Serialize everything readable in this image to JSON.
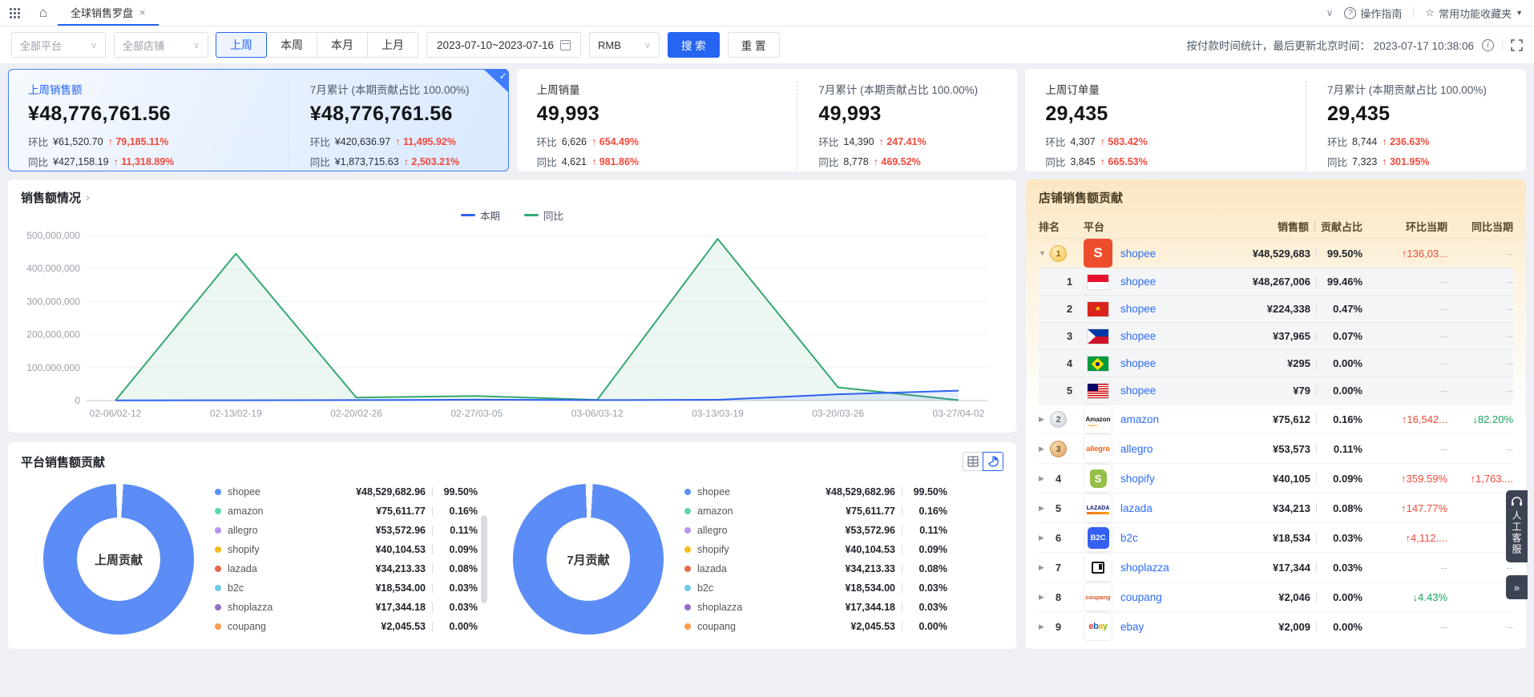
{
  "topbar": {
    "tab_label": "全球销售罗盘",
    "guide_label": "操作指南",
    "favorites_label": "常用功能收藏夹"
  },
  "icons": {
    "close": "×",
    "home": "⌂",
    "star": "☆",
    "question": "?",
    "info": "i",
    "chevron_down": "∨",
    "caret_down": "▼",
    "chevron_right": "›",
    "double_arrow": "»"
  },
  "filters": {
    "platform_select": "全部平台",
    "shop_select": "全部店铺",
    "periods": [
      {
        "label": "上周",
        "state": "active"
      },
      {
        "label": "本周",
        "state": ""
      },
      {
        "label": "本月",
        "state": ""
      },
      {
        "label": "上月",
        "state": ""
      }
    ],
    "date_range": "2023-07-10~2023-07-16",
    "currency": "RMB",
    "search_label": "搜 索",
    "reset_label": "重 置",
    "update_info": "按付款时间统计，最后更新北京时间： 2023-07-17 10:38:06"
  },
  "kpis": [
    {
      "state": "selected",
      "check": "✓",
      "title": "上周销售额",
      "value": "¥48,776,761.56",
      "mom": {
        "label": "环比",
        "value": "¥61,520.70",
        "arrow": "↑",
        "pct": "79,185.11%"
      },
      "yoy": {
        "label": "同比",
        "value": "¥427,158.19",
        "arrow": "↑",
        "pct": "11,318.89%"
      },
      "right": {
        "title": "7月累计 (本期贡献占比 100.00%)",
        "value": "¥48,776,761.56",
        "mom": {
          "label": "环比",
          "value": "¥420,636.97",
          "arrow": "↑",
          "pct": "11,495.92%"
        },
        "yoy": {
          "label": "同比",
          "value": "¥1,873,715.63",
          "arrow": "↑",
          "pct": "2,503.21%"
        }
      }
    },
    {
      "state": "",
      "check": "",
      "title": "上周销量",
      "value": "49,993",
      "mom": {
        "label": "环比",
        "value": "6,626",
        "arrow": "↑",
        "pct": "654.49%"
      },
      "yoy": {
        "label": "同比",
        "value": "4,621",
        "arrow": "↑",
        "pct": "981.86%"
      },
      "right": {
        "title": "7月累计 (本期贡献占比 100.00%)",
        "value": "49,993",
        "mom": {
          "label": "环比",
          "value": "14,390",
          "arrow": "↑",
          "pct": "247.41%"
        },
        "yoy": {
          "label": "同比",
          "value": "8,778",
          "arrow": "↑",
          "pct": "469.52%"
        }
      }
    },
    {
      "state": "",
      "check": "",
      "title": "上周订单量",
      "value": "29,435",
      "mom": {
        "label": "环比",
        "value": "4,307",
        "arrow": "↑",
        "pct": "583.42%"
      },
      "yoy": {
        "label": "同比",
        "value": "3,845",
        "arrow": "↑",
        "pct": "665.53%"
      },
      "right": {
        "title": "7月累计 (本期贡献占比 100.00%)",
        "value": "29,435",
        "mom": {
          "label": "环比",
          "value": "8,744",
          "arrow": "↑",
          "pct": "236.63%"
        },
        "yoy": {
          "label": "同比",
          "value": "7,323",
          "arrow": "↑",
          "pct": "301.95%"
        }
      }
    }
  ],
  "sales_chart": {
    "title": "销售额情况",
    "legend": [
      {
        "label": "本期",
        "color": "#2E62F4"
      },
      {
        "label": "同比",
        "color": "#35A872"
      }
    ]
  },
  "chart_data": [
    {
      "id": "sales_trend",
      "type": "line",
      "title": "销售额情况",
      "categories": [
        "02-06/02-12",
        "02-13/02-19",
        "02-20/02-26",
        "02-27/03-05",
        "03-06/03-12",
        "03-13/03-19",
        "03-20/03-26",
        "03-27/04-02"
      ],
      "series": [
        {
          "name": "本期",
          "color": "#2E62F4",
          "fill": "rgba(46,98,244,0.10)",
          "values": [
            600000,
            900000,
            1400000,
            2600000,
            1500000,
            2400000,
            19000000,
            30000000
          ]
        },
        {
          "name": "同比",
          "color": "#35A872",
          "fill": "rgba(53,168,114,0.09)",
          "values": [
            300000,
            445000000,
            9000000,
            14000000,
            2000000,
            490000000,
            40000000,
            1200000
          ]
        }
      ],
      "ylim": [
        0,
        500000000
      ],
      "yticks": [
        {
          "v": 500000000,
          "label": "500,000,000"
        },
        {
          "v": 400000000,
          "label": "400,000,000"
        },
        {
          "v": 300000000,
          "label": "300,000,000"
        },
        {
          "v": 200000000,
          "label": "200,000,000"
        },
        {
          "v": 100000000,
          "label": "100,000,000"
        },
        {
          "v": 0,
          "label": "0"
        }
      ],
      "grid": true,
      "legend_position": "top-center"
    },
    {
      "id": "platform_share",
      "type": "pie",
      "title": "平台销售额贡献",
      "centers": [
        "上周贡献",
        "7月贡献"
      ],
      "labels": [
        "shopee",
        "amazon",
        "allegro",
        "shopify",
        "lazada",
        "b2c",
        "shoplazza",
        "coupang"
      ],
      "values_pct": [
        99.5,
        0.16,
        0.11,
        0.09,
        0.08,
        0.03,
        0.03,
        0.0
      ],
      "values": [
        "¥48,529,682.96",
        "¥75,611.77",
        "¥53,572.96",
        "¥40,104.53",
        "¥34,213.33",
        "¥18,534.00",
        "¥17,344.18",
        "¥2,045.53"
      ],
      "ring_color": "#5C8DF6"
    }
  ],
  "platform_panel": {
    "title": "平台销售额贡献",
    "donut_centers": {
      "week": "上周贡献",
      "month": "7月贡献"
    },
    "legend": [
      {
        "name": "shopee",
        "value": "¥48,529,682.96",
        "pct": "99.50%",
        "color": "#5B8FF9"
      },
      {
        "name": "amazon",
        "value": "¥75,611.77",
        "pct": "0.16%",
        "color": "#5AD8A6"
      },
      {
        "name": "allegro",
        "value": "¥53,572.96",
        "pct": "0.11%",
        "color": "#B496F0"
      },
      {
        "name": "shopify",
        "value": "¥40,104.53",
        "pct": "0.09%",
        "color": "#F6BD16"
      },
      {
        "name": "lazada",
        "value": "¥34,213.33",
        "pct": "0.08%",
        "color": "#E8684A"
      },
      {
        "name": "b2c",
        "value": "¥18,534.00",
        "pct": "0.03%",
        "color": "#6DC8EC"
      },
      {
        "name": "shoplazza",
        "value": "¥17,344.18",
        "pct": "0.03%",
        "color": "#9270CA"
      },
      {
        "name": "coupang",
        "value": "¥2,045.53",
        "pct": "0.00%",
        "color": "#FF9D4D"
      }
    ]
  },
  "shop_panel": {
    "title": "店铺销售额贡献",
    "columns": {
      "rank": "排名",
      "platform": "平台",
      "sales": "销售额",
      "share": "贡献占比",
      "mom": "环比当期",
      "yoy": "同比当期"
    },
    "rows": [
      {
        "type": "group",
        "arrow": "▼",
        "medal": "gold",
        "rank": "1",
        "logo": "shopee",
        "logo_label": "S",
        "logo_star": "",
        "platform": "shopee",
        "value": "¥48,529,683",
        "pct": "99.50%",
        "mom": {
          "text": "↑136,03...",
          "dir": "up"
        },
        "yoy": {
          "text": "--",
          "dir": "none"
        }
      },
      {
        "type": "sub",
        "arrow": "",
        "medal": "",
        "rank": "1",
        "logo": "flag-id",
        "logo_label": "",
        "logo_star": "",
        "platform": "shopee",
        "value": "¥48,267,006",
        "pct": "99.46%",
        "mom": {
          "text": "--",
          "dir": "none"
        },
        "yoy": {
          "text": "--",
          "dir": "none"
        }
      },
      {
        "type": "sub",
        "arrow": "",
        "medal": "",
        "rank": "2",
        "logo": "flag-vn",
        "logo_label": "",
        "logo_star": "★",
        "platform": "shopee",
        "value": "¥224,338",
        "pct": "0.47%",
        "mom": {
          "text": "--",
          "dir": "none"
        },
        "yoy": {
          "text": "--",
          "dir": "none"
        }
      },
      {
        "type": "sub",
        "arrow": "",
        "medal": "",
        "rank": "3",
        "logo": "flag-ph",
        "logo_label": "",
        "logo_star": "",
        "platform": "shopee",
        "value": "¥37,965",
        "pct": "0.07%",
        "mom": {
          "text": "--",
          "dir": "none"
        },
        "yoy": {
          "text": "--",
          "dir": "none"
        }
      },
      {
        "type": "sub",
        "arrow": "",
        "medal": "",
        "rank": "4",
        "logo": "flag-br",
        "logo_label": "",
        "logo_star": "",
        "platform": "shopee",
        "value": "¥295",
        "pct": "0.00%",
        "mom": {
          "text": "--",
          "dir": "none"
        },
        "yoy": {
          "text": "--",
          "dir": "none"
        }
      },
      {
        "type": "sub",
        "arrow": "",
        "medal": "",
        "rank": "5",
        "logo": "flag-my",
        "logo_label": "",
        "logo_star": "",
        "platform": "shopee",
        "value": "¥79",
        "pct": "0.00%",
        "mom": {
          "text": "--",
          "dir": "none"
        },
        "yoy": {
          "text": "--",
          "dir": "none"
        }
      },
      {
        "type": "group",
        "arrow": "▶",
        "medal": "silver",
        "rank": "2",
        "logo": "amazon",
        "logo_label": "Amazon",
        "logo_star": "",
        "platform": "amazon",
        "value": "¥75,612",
        "pct": "0.16%",
        "mom": {
          "text": "↑16,542...",
          "dir": "up"
        },
        "yoy": {
          "text": "↓82.20%",
          "dir": "down"
        }
      },
      {
        "type": "group",
        "arrow": "▶",
        "medal": "bronze",
        "rank": "3",
        "logo": "allegro",
        "logo_label": "allegro",
        "logo_star": "",
        "platform": "allegro",
        "value": "¥53,573",
        "pct": "0.11%",
        "mom": {
          "text": "--",
          "dir": "none"
        },
        "yoy": {
          "text": "--",
          "dir": "none"
        }
      },
      {
        "type": "group",
        "arrow": "▶",
        "medal": "",
        "rank": "4",
        "logo": "shopify",
        "logo_label": "S",
        "logo_star": "",
        "platform": "shopify",
        "value": "¥40,105",
        "pct": "0.09%",
        "mom": {
          "text": "↑359.59%",
          "dir": "up"
        },
        "yoy": {
          "text": "↑1,763....",
          "dir": "up"
        }
      },
      {
        "type": "group",
        "arrow": "▶",
        "medal": "",
        "rank": "5",
        "logo": "lazada",
        "logo_label": "LAZADA",
        "logo_star": "",
        "platform": "lazada",
        "value": "¥34,213",
        "pct": "0.08%",
        "mom": {
          "text": "↑147.77%",
          "dir": "up"
        },
        "yoy": {
          "text": "--",
          "dir": "none"
        }
      },
      {
        "type": "group",
        "arrow": "▶",
        "medal": "",
        "rank": "6",
        "logo": "b2c",
        "logo_label": "B2C",
        "logo_star": "",
        "platform": "b2c",
        "value": "¥18,534",
        "pct": "0.03%",
        "mom": {
          "text": "↑4,112....",
          "dir": "up"
        },
        "yoy": {
          "text": "--",
          "dir": "none"
        }
      },
      {
        "type": "group",
        "arrow": "▶",
        "medal": "",
        "rank": "7",
        "logo": "shoplazza",
        "logo_label": "",
        "logo_star": "",
        "platform": "shoplazza",
        "value": "¥17,344",
        "pct": "0.03%",
        "mom": {
          "text": "--",
          "dir": "none"
        },
        "yoy": {
          "text": "--",
          "dir": "none"
        }
      },
      {
        "type": "group",
        "arrow": "▶",
        "medal": "",
        "rank": "8",
        "logo": "coupang",
        "logo_label": "coupang",
        "logo_star": "",
        "platform": "coupang",
        "value": "¥2,046",
        "pct": "0.00%",
        "mom": {
          "text": "↓4.43%",
          "dir": "down"
        },
        "yoy": {
          "text": "--",
          "dir": "none"
        }
      },
      {
        "type": "group",
        "arrow": "▶",
        "medal": "",
        "rank": "9",
        "logo": "ebay",
        "logo_label": "",
        "logo_star": "",
        "platform": "ebay",
        "value": "¥2,009",
        "pct": "0.00%",
        "logo_chars": [
          [
            "e",
            "#e53238"
          ],
          [
            "b",
            "#0064d2"
          ],
          [
            "a",
            "#f5af02"
          ],
          [
            "y",
            "#86b817"
          ]
        ],
        "mom": {
          "text": "--",
          "dir": "none"
        },
        "yoy": {
          "text": "--",
          "dir": "none"
        }
      }
    ]
  },
  "floating": {
    "service_label": "人工客服",
    "collapse_glyph": "»"
  }
}
